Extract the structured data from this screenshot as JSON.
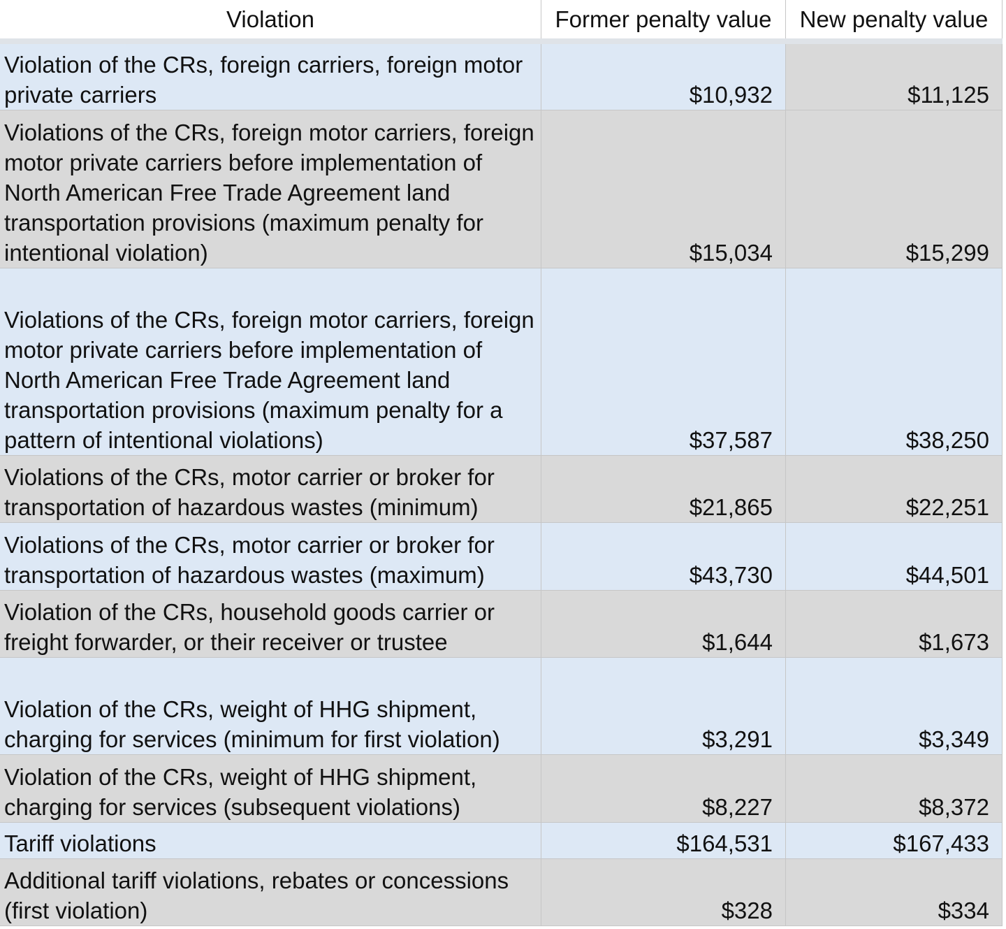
{
  "table": {
    "header": [
      "Violation",
      "Former penalty value",
      "New penalty value"
    ],
    "rows": [
      [
        "Violation of the CRs, foreign carriers, foreign motor private carriers",
        "$10,932",
        "$11,125"
      ],
      [
        "Violations of the CRs, foreign motor carriers, foreign motor private carriers before implementation of North American Free Trade Agreement land transportation provisions (maximum penalty for intentional violation)",
        "$15,034",
        "$15,299"
      ],
      [
        "Violations of the CRs, foreign motor carriers, foreign motor private carriers before implementation of North American Free Trade Agreement land transportation provisions (maximum penalty for a pattern of intentional violations)",
        "$37,587",
        "$38,250"
      ],
      [
        "Violations of the CRs, motor carrier or broker for transportation of hazardous wastes (minimum)",
        "$21,865",
        "$22,251"
      ],
      [
        "Violations of the CRs, motor carrier or broker for transportation of hazardous wastes (maximum)",
        "$43,730",
        "$44,501"
      ],
      [
        "Violation of the CRs, household goods carrier or freight forwarder, or their receiver or trustee",
        "$1,644",
        "$1,673"
      ],
      [
        "Violation of the CRs, weight of HHG shipment, charging for services (minimum for first violation)",
        "$3,291",
        "$3,349"
      ],
      [
        "Violation of the CRs, weight of HHG shipment, charging for services (subsequent violations)",
        "$8,227",
        "$8,372"
      ],
      [
        "Tariff violations",
        "$164,531",
        "$167,433"
      ],
      [
        "Additional tariff violations, rebates or concessions (first violation)",
        "$328",
        "$334"
      ]
    ]
  }
}
